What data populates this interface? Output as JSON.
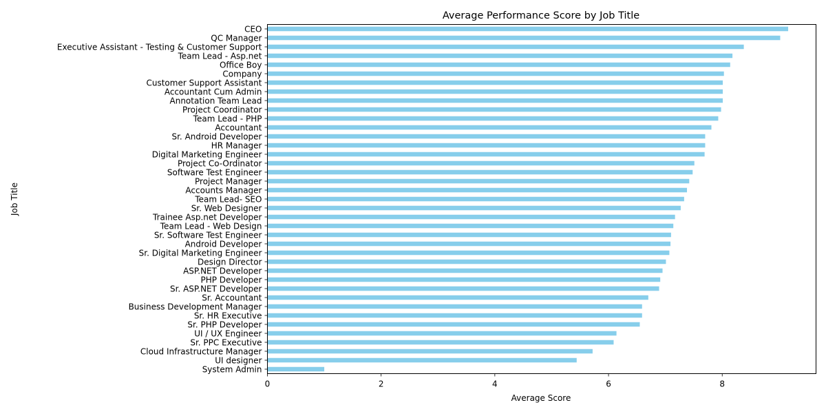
{
  "chart_data": {
    "type": "bar",
    "orientation": "horizontal",
    "title": "Average Performance Score by Job Title",
    "xlabel": "Average Score",
    "ylabel": "Job Title",
    "xlim": [
      0,
      9.65
    ],
    "xticks": [
      0,
      2,
      4,
      6,
      8
    ],
    "grid": false,
    "bar_color": "#87ceeb",
    "categories": [
      "CEO",
      "QC Manager",
      "Executive Assistant - Testing & Customer Support",
      "Team Lead - Asp.net",
      "Office Boy",
      "Company",
      "Customer Support Assistant",
      "Accountant Cum Admin",
      "Annotation Team Lead",
      "Project Coordinator",
      "Team Lead - PHP",
      "Accountant",
      "Sr. Android Developer",
      "HR Manager",
      "Digital Marketing Engineer",
      "Project Co-Ordinator",
      "Software Test Engineer",
      "Project Manager",
      "Accounts Manager",
      "Team Lead- SEO",
      "Sr. Web Designer",
      "Trainee Asp.net Developer",
      "Team Lead - Web Design",
      "Sr. Software Test Engineer",
      "Android Developer",
      "Sr. Digital Marketing Engineer",
      "Design Director",
      "ASP.NET Developer",
      "PHP Developer",
      "Sr. ASP.NET Developer",
      "Sr. Accountant",
      "Business Development Manager",
      "Sr. HR Executive",
      "Sr. PHP Developer",
      "UI / UX Engineer",
      "Sr. PPC Executive",
      "Cloud Infrastructure Manager",
      "UI designer",
      "System Admin"
    ],
    "values": [
      9.16,
      9.02,
      8.38,
      8.18,
      8.14,
      8.03,
      8.01,
      8.01,
      8.01,
      7.98,
      7.93,
      7.81,
      7.7,
      7.7,
      7.69,
      7.51,
      7.48,
      7.42,
      7.38,
      7.33,
      7.27,
      7.17,
      7.14,
      7.1,
      7.09,
      7.07,
      7.01,
      6.95,
      6.91,
      6.89,
      6.7,
      6.59,
      6.59,
      6.55,
      6.14,
      6.09,
      5.72,
      5.44,
      1.0
    ]
  }
}
